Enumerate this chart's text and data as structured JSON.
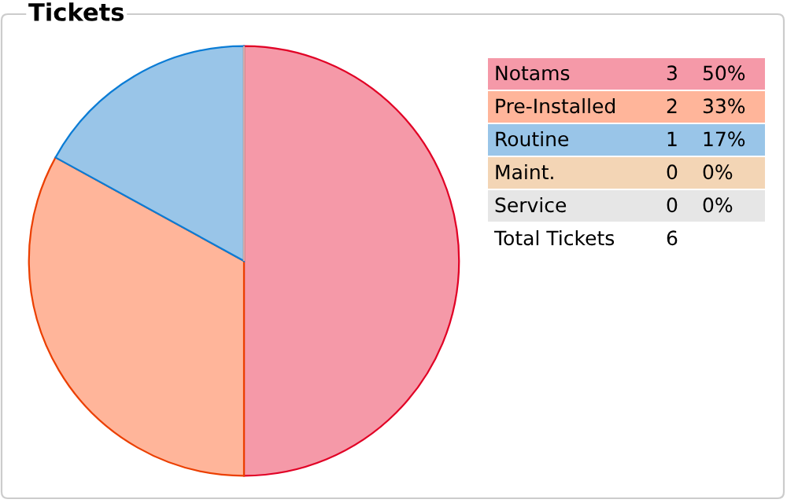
{
  "chart_data": {
    "type": "pie",
    "title": "Tickets",
    "categories": [
      "Notams",
      "Pre-Installed",
      "Routine",
      "Maint.",
      "Service"
    ],
    "values": [
      50,
      33,
      17,
      0,
      0
    ],
    "colors": [
      "#f599a8",
      "#ffb59a",
      "#99c5e8",
      "#f3d5b5",
      "#e6e6e6"
    ],
    "legend": "top right",
    "annotations": [
      "3",
      "2",
      "1",
      "0",
      "0",
      "50%",
      "33%",
      "17%",
      "0%",
      "0%",
      "Total Tickets",
      "6"
    ]
  }
}
